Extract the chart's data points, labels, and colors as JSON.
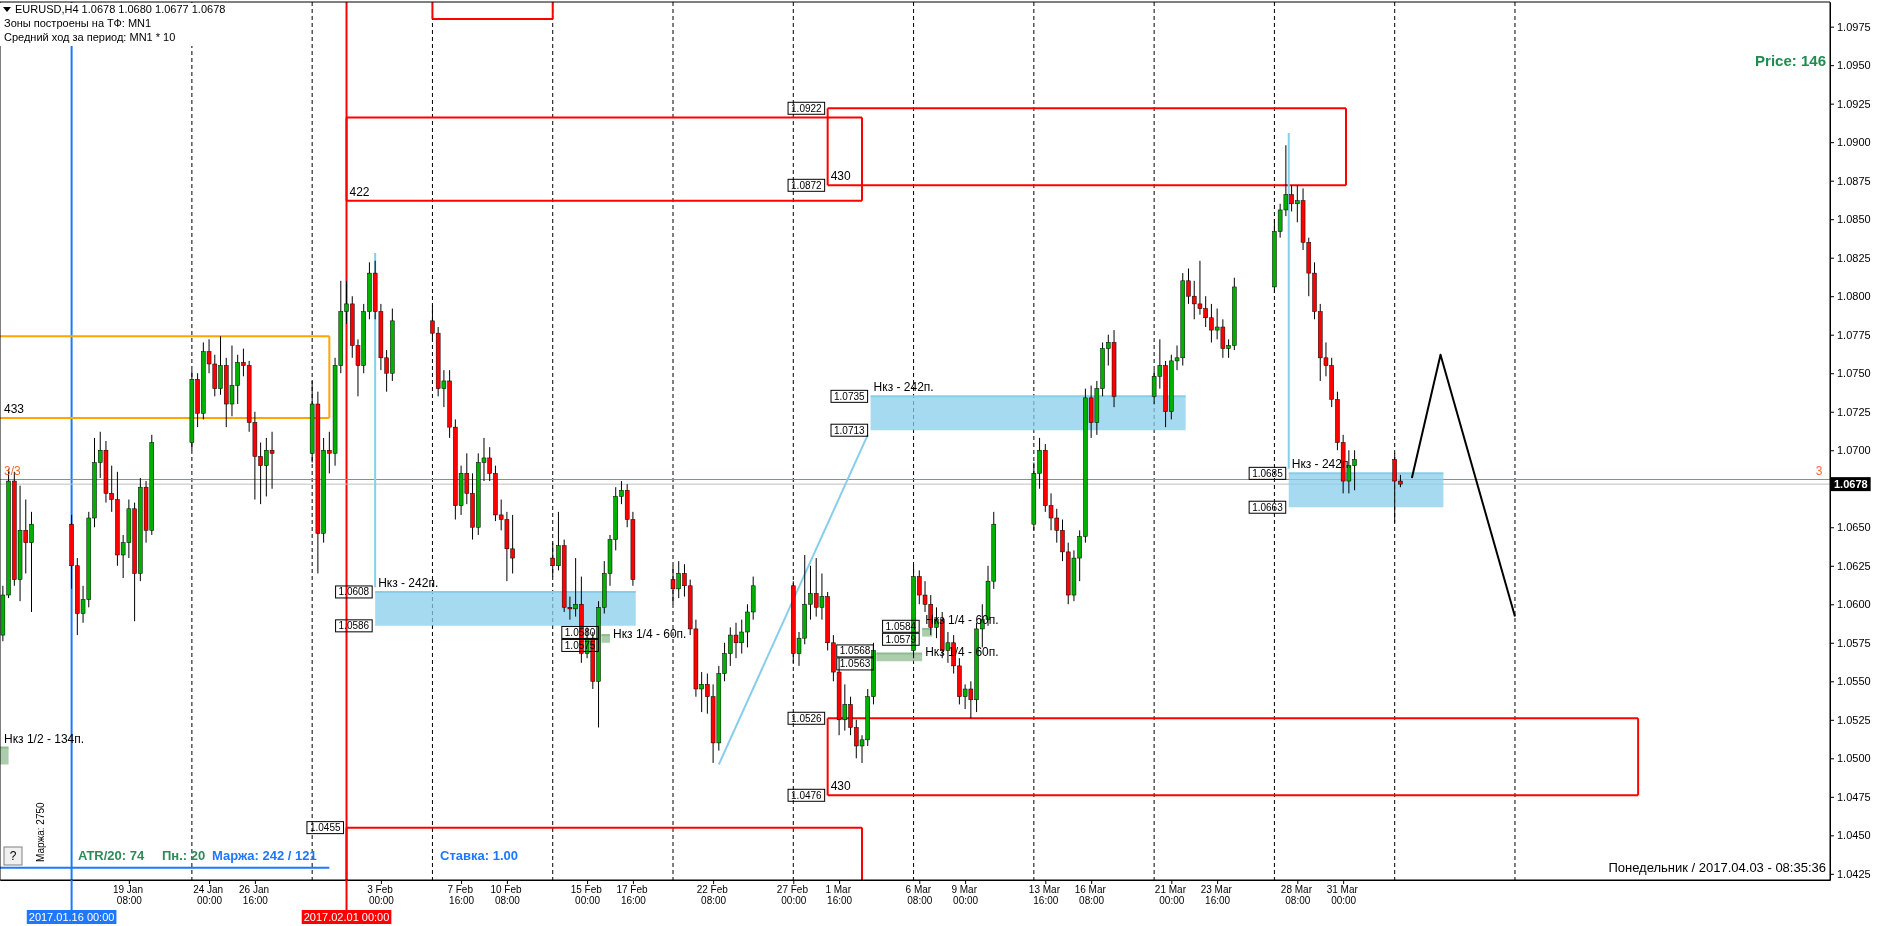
{
  "chart_data": {
    "type": "candlestick",
    "title": "EURUSD,H4  1.0678 1.0680 1.0677 1.0678",
    "subtitle": "Зоны построены на ТФ: MN1",
    "annotations": [
      "Средний ход за период: MN1 * 10",
      "Price: 146",
      "ATR/20: 74",
      "Пн.: 20",
      "Маржа: 242 / 121",
      "Ставка: 1.00",
      "Маржа: 2750",
      "Понедельник / 2017.04.03 - 08:35:36",
      "?",
      {
        "text": "3/3",
        "x": "2017-01-11T20:00",
        "y": 1.0681
      },
      {
        "text": "3",
        "x": "2017-04-27T08:00",
        "y": 1.0681
      },
      {
        "text": "422",
        "x": "2017-02-01T00:00",
        "y": 1.0862
      },
      {
        "text": "430",
        "x": "2017-03-01T00:00",
        "y": 1.0872
      },
      {
        "text": "430",
        "x": "2017-03-01T00:00",
        "y": 1.0476
      },
      {
        "text": "433",
        "x": "2017-01-11T20:00",
        "y": 1.0721
      },
      {
        "text": "Нкз - 242п.",
        "x": "2017-02-02T16:00",
        "y": 1.0608
      },
      {
        "text": "Нкз - 242п.",
        "x": "2017-03-03T12:00",
        "y": 1.0735
      },
      {
        "text": "Нкз - 242п.",
        "x": "2017-03-27T20:00",
        "y": 1.0685
      },
      {
        "text": "Нкз 1/2 - 134п.",
        "x": "2017-01-11T20:00",
        "y": 1.0507
      },
      {
        "text": "Нкз 1/4 - 60п.",
        "x": "2017-02-16T08:00",
        "y": 1.0575
      },
      {
        "text": "Нкз 1/4 - 60п.",
        "x": "2017-03-06T12:00",
        "y": 1.0584
      },
      {
        "text": "Нкз 1/4 - 60п.",
        "x": "2017-03-06T12:00",
        "y": 1.0563
      },
      {
        "text": "1.0922",
        "x": "2017-03-01T00:00",
        "y": 1.0922
      },
      {
        "text": "1.0872",
        "x": "2017-03-01T00:00",
        "y": 1.0872
      },
      {
        "text": "1.0526",
        "x": "2017-03-01T00:00",
        "y": 1.0526
      },
      {
        "text": "1.0476",
        "x": "2017-03-01T00:00",
        "y": 1.0476
      },
      {
        "text": "1.0455",
        "x": "2017-02-01T00:00",
        "y": 1.0455
      },
      {
        "text": "1.0608",
        "x": "2017-02-02T16:00",
        "y": 1.0608
      },
      {
        "text": "1.0586",
        "x": "2017-02-02T16:00",
        "y": 1.0586
      },
      {
        "text": "1.0735",
        "x": "2017-03-03T12:00",
        "y": 1.0735
      },
      {
        "text": "1.0713",
        "x": "2017-03-03T12:00",
        "y": 1.0713
      },
      {
        "text": "1.0685",
        "x": "2017-03-27T20:00",
        "y": 1.0685
      },
      {
        "text": "1.0663",
        "x": "2017-03-27T20:00",
        "y": 1.0663
      },
      {
        "text": "1.0580",
        "x": "2017-02-15T20:00",
        "y": 1.058
      },
      {
        "text": "1.0575",
        "x": "2017-02-15T20:00",
        "y": 1.0575
      },
      {
        "text": "1.0584",
        "x": "2017-03-06T12:00",
        "y": 1.0584
      },
      {
        "text": "1.0579",
        "x": "2017-03-06T12:00",
        "y": 1.0579
      },
      {
        "text": "1.0568",
        "x": "2017-03-03T20:00",
        "y": 1.0568
      },
      {
        "text": "1.0563",
        "x": "2017-03-03T20:00",
        "y": 1.0563
      }
    ],
    "xlim": [
      "2017-01-11T20:00",
      "2017-04-28T08:00"
    ],
    "xticks": [
      {
        "value": "2017-01-19T08:00",
        "label": "19 Jan 08:00"
      },
      {
        "value": "2017-01-24T00:00",
        "label": "24 Jan 00:00"
      },
      {
        "value": "2017-01-26T16:00",
        "label": "26 Jan 16:00"
      },
      {
        "value": "2017-02-03T00:00",
        "label": "3 Feb 00:00"
      },
      {
        "value": "2017-02-07T16:00",
        "label": "7 Feb 16:00"
      },
      {
        "value": "2017-02-10T08:00",
        "label": "10 Feb 08:00"
      },
      {
        "value": "2017-02-15T00:00",
        "label": "15 Feb 00:00"
      },
      {
        "value": "2017-02-17T16:00",
        "label": "17 Feb 16:00"
      },
      {
        "value": "2017-02-22T08:00",
        "label": "22 Feb 08:00"
      },
      {
        "value": "2017-02-27T00:00",
        "label": "27 Feb 00:00"
      },
      {
        "value": "2017-03-01T16:00",
        "label": "1 Mar 16:00"
      },
      {
        "value": "2017-03-06T08:00",
        "label": "6 Mar 08:00"
      },
      {
        "value": "2017-03-09T00:00",
        "label": "9 Mar 00:00"
      },
      {
        "value": "2017-03-13T16:00",
        "label": "13 Mar 16:00"
      },
      {
        "value": "2017-03-16T08:00",
        "label": "16 Mar 08:00"
      },
      {
        "value": "2017-03-21T00:00",
        "label": "21 Mar 00:00"
      },
      {
        "value": "2017-03-23T16:00",
        "label": "23 Mar 16:00"
      },
      {
        "value": "2017-03-28T08:00",
        "label": "28 Mar 08:00"
      },
      {
        "value": "2017-03-31T00:00",
        "label": "31 Mar 00:00"
      }
    ],
    "ylim": [
      1.0421,
      1.0991
    ],
    "yticks": [
      {
        "value": 1.0425,
        "label": "1.0425"
      },
      {
        "value": 1.045,
        "label": "1.0450"
      },
      {
        "value": 1.0475,
        "label": "1.0475"
      },
      {
        "value": 1.05,
        "label": "1.0500"
      },
      {
        "value": 1.0525,
        "label": "1.0525"
      },
      {
        "value": 1.055,
        "label": "1.0550"
      },
      {
        "value": 1.0575,
        "label": "1.0575"
      },
      {
        "value": 1.06,
        "label": "1.0600"
      },
      {
        "value": 1.0625,
        "label": "1.0625"
      },
      {
        "value": 1.065,
        "label": "1.0650"
      },
      {
        "value": 1.07,
        "label": "1.0700"
      },
      {
        "value": 1.0725,
        "label": "1.0725"
      },
      {
        "value": 1.075,
        "label": "1.0750"
      },
      {
        "value": 1.0775,
        "label": "1.0775"
      },
      {
        "value": 1.08,
        "label": "1.0800"
      },
      {
        "value": 1.0825,
        "label": "1.0825"
      },
      {
        "value": 1.085,
        "label": "1.0850"
      },
      {
        "value": 1.0875,
        "label": "1.0875"
      },
      {
        "value": 1.09,
        "label": "1.0900"
      },
      {
        "value": 1.0925,
        "label": "1.0925"
      },
      {
        "value": 1.095,
        "label": "1.0950"
      },
      {
        "value": 1.0975,
        "label": "1.0975"
      }
    ],
    "x": [
      "2017-01-12T00:00",
      "2017-01-12T08:00",
      "2017-01-12T16:00",
      "2017-01-13T00:00",
      "2017-01-13T08:00",
      "2017-01-13T16:00",
      "2017-01-16T00:00",
      "2017-01-16T08:00",
      "2017-01-16T16:00",
      "2017-01-17T00:00",
      "2017-01-17T08:00",
      "2017-01-17T16:00",
      "2017-01-18T00:00",
      "2017-01-18T08:00",
      "2017-01-18T16:00",
      "2017-01-19T00:00",
      "2017-01-19T08:00",
      "2017-01-19T16:00",
      "2017-01-20T00:00",
      "2017-01-20T08:00",
      "2017-01-20T16:00",
      "2017-01-23T00:00",
      "2017-01-23T08:00",
      "2017-01-23T16:00",
      "2017-01-24T00:00",
      "2017-01-24T08:00",
      "2017-01-24T16:00",
      "2017-01-25T00:00",
      "2017-01-25T08:00",
      "2017-01-25T16:00",
      "2017-01-26T00:00",
      "2017-01-26T08:00",
      "2017-01-26T16:00",
      "2017-01-27T00:00",
      "2017-01-27T08:00",
      "2017-01-27T16:00",
      "2017-01-30T00:00",
      "2017-01-30T08:00",
      "2017-01-30T16:00",
      "2017-01-31T00:00",
      "2017-01-31T08:00",
      "2017-01-31T16:00",
      "2017-02-01T00:00",
      "2017-02-01T08:00",
      "2017-02-01T16:00",
      "2017-02-02T00:00",
      "2017-02-02T08:00",
      "2017-02-02T16:00",
      "2017-02-03T00:00",
      "2017-02-03T08:00",
      "2017-02-03T16:00",
      "2017-02-06T00:00",
      "2017-02-06T08:00",
      "2017-02-06T16:00",
      "2017-02-07T00:00",
      "2017-02-07T08:00",
      "2017-02-07T16:00",
      "2017-02-08T00:00",
      "2017-02-08T08:00",
      "2017-02-08T16:00",
      "2017-02-09T00:00",
      "2017-02-09T08:00",
      "2017-02-09T16:00",
      "2017-02-10T00:00",
      "2017-02-10T08:00",
      "2017-02-10T16:00",
      "2017-02-13T00:00",
      "2017-02-13T08:00",
      "2017-02-13T16:00",
      "2017-02-14T00:00",
      "2017-02-14T08:00",
      "2017-02-14T16:00",
      "2017-02-15T00:00",
      "2017-02-15T08:00",
      "2017-02-15T16:00",
      "2017-02-16T00:00",
      "2017-02-16T08:00",
      "2017-02-16T16:00",
      "2017-02-17T00:00",
      "2017-02-17T08:00",
      "2017-02-17T16:00",
      "2017-02-20T00:00",
      "2017-02-20T08:00",
      "2017-02-20T16:00",
      "2017-02-21T00:00",
      "2017-02-21T08:00",
      "2017-02-21T16:00",
      "2017-02-22T00:00",
      "2017-02-22T08:00",
      "2017-02-22T16:00",
      "2017-02-23T00:00",
      "2017-02-23T08:00",
      "2017-02-23T16:00",
      "2017-02-24T00:00",
      "2017-02-24T08:00",
      "2017-02-24T16:00",
      "2017-02-27T00:00",
      "2017-02-27T08:00",
      "2017-02-27T16:00",
      "2017-02-28T00:00",
      "2017-02-28T08:00",
      "2017-02-28T16:00",
      "2017-03-01T00:00",
      "2017-03-01T08:00",
      "2017-03-01T16:00",
      "2017-03-02T00:00",
      "2017-03-02T08:00",
      "2017-03-02T16:00",
      "2017-03-03T00:00",
      "2017-03-03T08:00",
      "2017-03-03T16:00",
      "2017-03-06T00:00",
      "2017-03-06T08:00",
      "2017-03-06T16:00",
      "2017-03-07T00:00",
      "2017-03-07T08:00",
      "2017-03-07T16:00",
      "2017-03-08T00:00",
      "2017-03-08T08:00",
      "2017-03-08T16:00",
      "2017-03-09T00:00",
      "2017-03-09T08:00",
      "2017-03-09T16:00",
      "2017-03-10T00:00",
      "2017-03-10T08:00",
      "2017-03-10T16:00",
      "2017-03-13T00:00",
      "2017-03-13T08:00",
      "2017-03-13T16:00",
      "2017-03-14T00:00",
      "2017-03-14T08:00",
      "2017-03-14T16:00",
      "2017-03-15T00:00",
      "2017-03-15T08:00",
      "2017-03-15T16:00",
      "2017-03-16T00:00",
      "2017-03-16T08:00",
      "2017-03-16T16:00",
      "2017-03-17T00:00",
      "2017-03-17T08:00",
      "2017-03-17T16:00",
      "2017-03-20T00:00",
      "2017-03-20T08:00",
      "2017-03-20T16:00",
      "2017-03-21T00:00",
      "2017-03-21T08:00",
      "2017-03-21T16:00",
      "2017-03-22T00:00",
      "2017-03-22T08:00",
      "2017-03-22T16:00",
      "2017-03-23T00:00",
      "2017-03-23T08:00",
      "2017-03-23T16:00",
      "2017-03-24T00:00",
      "2017-03-24T08:00",
      "2017-03-24T16:00",
      "2017-03-27T00:00",
      "2017-03-27T08:00",
      "2017-03-27T16:00",
      "2017-03-28T00:00",
      "2017-03-28T08:00",
      "2017-03-28T16:00",
      "2017-03-29T00:00",
      "2017-03-29T08:00",
      "2017-03-29T16:00",
      "2017-03-30T00:00",
      "2017-03-30T08:00",
      "2017-03-30T16:00",
      "2017-03-31T00:00",
      "2017-03-31T08:00",
      "2017-03-31T16:00",
      "2017-04-03T00:00",
      "2017-04-03T08:00"
    ],
    "ohlc": [
      [
        1.058,
        1.0612,
        1.0576,
        1.0606
      ],
      [
        1.0606,
        1.0688,
        1.0604,
        1.068
      ],
      [
        1.068,
        1.0686,
        1.0612,
        1.0616
      ],
      [
        1.0616,
        1.0677,
        1.0602,
        1.0648
      ],
      [
        1.0648,
        1.0668,
        1.062,
        1.064
      ],
      [
        1.064,
        1.066,
        1.0595,
        1.0652
      ],
      [
        1.0652,
        1.0658,
        1.061,
        1.0625
      ],
      [
        1.0625,
        1.063,
        1.058,
        1.0594
      ],
      [
        1.0594,
        1.0612,
        1.0588,
        1.0603
      ],
      [
        1.0603,
        1.066,
        1.0598,
        1.0656
      ],
      [
        1.0656,
        1.0708,
        1.065,
        1.0692
      ],
      [
        1.0692,
        1.0712,
        1.0682,
        1.07
      ],
      [
        1.07,
        1.0706,
        1.0666,
        1.0672
      ],
      [
        1.0672,
        1.069,
        1.066,
        1.0668
      ],
      [
        1.0668,
        1.0686,
        1.0625,
        1.0632
      ],
      [
        1.0632,
        1.0645,
        1.0617,
        1.064
      ],
      [
        1.064,
        1.0668,
        1.063,
        1.0662
      ],
      [
        1.0662,
        1.0666,
        1.0589,
        1.062
      ],
      [
        1.062,
        1.0682,
        1.0615,
        1.0676
      ],
      [
        1.0676,
        1.068,
        1.064,
        1.0648
      ],
      [
        1.0648,
        1.071,
        1.0645,
        1.0705
      ],
      [
        1.0705,
        1.0752,
        1.07,
        1.0746
      ],
      [
        1.0746,
        1.075,
        1.0715,
        1.0724
      ],
      [
        1.0724,
        1.077,
        1.072,
        1.0764
      ],
      [
        1.0764,
        1.0772,
        1.075,
        1.0756
      ],
      [
        1.0756,
        1.0762,
        1.0735,
        1.074
      ],
      [
        1.074,
        1.0774,
        1.0736,
        1.0755
      ],
      [
        1.0755,
        1.076,
        1.0715,
        1.073
      ],
      [
        1.073,
        1.0768,
        1.0722,
        1.0742
      ],
      [
        1.0742,
        1.0762,
        1.073,
        1.0757
      ],
      [
        1.0757,
        1.0766,
        1.0748,
        1.0755
      ],
      [
        1.0755,
        1.0758,
        1.0712,
        1.0718
      ],
      [
        1.0718,
        1.0725,
        1.0668,
        1.0696
      ],
      [
        1.0696,
        1.0705,
        1.0665,
        1.069
      ],
      [
        1.069,
        1.0708,
        1.067,
        1.07
      ],
      [
        1.07,
        1.0712,
        1.0675,
        1.0698
      ],
      [
        1.0698,
        1.0745,
        1.0692,
        1.073
      ],
      [
        1.073,
        1.0738,
        1.062,
        1.0646
      ],
      [
        1.0646,
        1.0708,
        1.064,
        1.07
      ],
      [
        1.07,
        1.0712,
        1.0685,
        1.0698
      ],
      [
        1.0698,
        1.076,
        1.069,
        1.0755
      ],
      [
        1.0755,
        1.081,
        1.075,
        1.079
      ],
      [
        1.079,
        1.081,
        1.0782,
        1.0795
      ],
      [
        1.0795,
        1.08,
        1.076,
        1.0768
      ],
      [
        1.0768,
        1.0772,
        1.0735,
        1.0755
      ],
      [
        1.0755,
        1.0795,
        1.075,
        1.079
      ],
      [
        1.079,
        1.0822,
        1.0785,
        1.0815
      ],
      [
        1.0815,
        1.0823,
        1.0785,
        1.079
      ],
      [
        1.079,
        1.0795,
        1.0752,
        1.076
      ],
      [
        1.076,
        1.0765,
        1.0738,
        1.075
      ],
      [
        1.075,
        1.0792,
        1.0745,
        1.0784
      ],
      [
        1.0784,
        1.0794,
        1.0772,
        1.0776
      ],
      [
        1.0776,
        1.078,
        1.0735,
        1.074
      ],
      [
        1.074,
        1.0752,
        1.0728,
        1.0745
      ],
      [
        1.0745,
        1.0752,
        1.0708,
        1.0715
      ],
      [
        1.0715,
        1.072,
        1.0655,
        1.0664
      ],
      [
        1.0664,
        1.069,
        1.0658,
        1.0685
      ],
      [
        1.0685,
        1.0698,
        1.0665,
        1.0672
      ],
      [
        1.0672,
        1.0685,
        1.0642,
        1.065
      ],
      [
        1.065,
        1.0698,
        1.0645,
        1.0692
      ],
      [
        1.0692,
        1.0708,
        1.068,
        1.0695
      ],
      [
        1.0695,
        1.0702,
        1.068,
        1.0685
      ],
      [
        1.0685,
        1.069,
        1.0654,
        1.0658
      ],
      [
        1.0658,
        1.0668,
        1.0648,
        1.0655
      ],
      [
        1.0655,
        1.066,
        1.0615,
        1.0636
      ],
      [
        1.0636,
        1.0658,
        1.062,
        1.063
      ],
      [
        1.063,
        1.064,
        1.0618,
        1.0625
      ],
      [
        1.0625,
        1.066,
        1.0622,
        1.0638
      ],
      [
        1.0638,
        1.0642,
        1.0595,
        1.0598
      ],
      [
        1.0598,
        1.0605,
        1.059,
        1.0597
      ],
      [
        1.0597,
        1.063,
        1.0592,
        1.06
      ],
      [
        1.06,
        1.0618,
        1.0562,
        1.0568
      ],
      [
        1.0568,
        1.0585,
        1.0565,
        1.0578
      ],
      [
        1.0578,
        1.0582,
        1.0545,
        1.055
      ],
      [
        1.055,
        1.0602,
        1.052,
        1.0598
      ],
      [
        1.0598,
        1.0628,
        1.0594,
        1.062
      ],
      [
        1.062,
        1.0645,
        1.0612,
        1.0642
      ],
      [
        1.0642,
        1.0676,
        1.0635,
        1.067
      ],
      [
        1.067,
        1.068,
        1.0665,
        1.0674
      ],
      [
        1.0674,
        1.0678,
        1.065,
        1.0655
      ],
      [
        1.0655,
        1.066,
        1.0612,
        1.0616
      ],
      [
        1.0616,
        1.0625,
        1.06,
        1.061
      ],
      [
        1.061,
        1.0628,
        1.0604,
        1.062
      ],
      [
        1.062,
        1.0626,
        1.0605,
        1.0612
      ],
      [
        1.0612,
        1.0616,
        1.058,
        1.0584
      ],
      [
        1.0584,
        1.059,
        1.054,
        1.0545
      ],
      [
        1.0545,
        1.0556,
        1.053,
        1.0548
      ],
      [
        1.0548,
        1.0555,
        1.0529,
        1.054
      ],
      [
        1.054,
        1.0548,
        1.0497,
        1.051
      ],
      [
        1.051,
        1.056,
        1.0505,
        1.0555
      ],
      [
        1.0555,
        1.0575,
        1.055,
        1.0568
      ],
      [
        1.0568,
        1.0585,
        1.056,
        1.058
      ],
      [
        1.058,
        1.0588,
        1.0565,
        1.0575
      ],
      [
        1.0575,
        1.059,
        1.0568,
        1.0582
      ],
      [
        1.0582,
        1.06,
        1.0572,
        1.0595
      ],
      [
        1.0595,
        1.0618,
        1.059,
        1.0612
      ],
      [
        1.0612,
        1.0615,
        1.0562,
        1.0568
      ],
      [
        1.0568,
        1.0582,
        1.056,
        1.0578
      ],
      [
        1.0578,
        1.0632,
        1.0574,
        1.06
      ],
      [
        1.06,
        1.0625,
        1.059,
        1.0607
      ],
      [
        1.0607,
        1.063,
        1.0592,
        1.0598
      ],
      [
        1.0598,
        1.062,
        1.059,
        1.0605
      ],
      [
        1.0605,
        1.0608,
        1.057,
        1.0575
      ],
      [
        1.0575,
        1.058,
        1.055,
        1.0556
      ],
      [
        1.0556,
        1.0565,
        1.0515,
        1.0525
      ],
      [
        1.0525,
        1.0548,
        1.0518,
        1.0535
      ],
      [
        1.0535,
        1.054,
        1.0515,
        1.052
      ],
      [
        1.052,
        1.0525,
        1.05,
        1.0508
      ],
      [
        1.0508,
        1.0515,
        1.0497,
        1.0512
      ],
      [
        1.0512,
        1.0545,
        1.0508,
        1.054
      ],
      [
        1.054,
        1.0575,
        1.0535,
        1.057
      ],
      [
        1.057,
        1.0625,
        1.0565,
        1.0618
      ],
      [
        1.0618,
        1.0622,
        1.06,
        1.0606
      ],
      [
        1.0606,
        1.0615,
        1.0595,
        1.06
      ],
      [
        1.06,
        1.0606,
        1.058,
        1.0585
      ],
      [
        1.0585,
        1.0598,
        1.0578,
        1.059
      ],
      [
        1.059,
        1.0595,
        1.0565,
        1.057
      ],
      [
        1.057,
        1.0582,
        1.0562,
        1.0575
      ],
      [
        1.0575,
        1.058,
        1.0555,
        1.056
      ],
      [
        1.056,
        1.0565,
        1.0535,
        1.054
      ],
      [
        1.054,
        1.0548,
        1.0532,
        1.0545
      ],
      [
        1.0545,
        1.055,
        1.0526,
        1.0538
      ],
      [
        1.0538,
        1.0588,
        1.053,
        1.0584
      ],
      [
        1.0584,
        1.06,
        1.0572,
        1.059
      ],
      [
        1.059,
        1.0625,
        1.0586,
        1.0615
      ],
      [
        1.0615,
        1.066,
        1.061,
        1.0652
      ],
      [
        1.0652,
        1.0692,
        1.0648,
        1.0685
      ],
      [
        1.0685,
        1.0708,
        1.0675,
        1.07
      ],
      [
        1.07,
        1.0704,
        1.066,
        1.0664
      ],
      [
        1.0664,
        1.0672,
        1.0648,
        1.0656
      ],
      [
        1.0656,
        1.0662,
        1.064,
        1.0648
      ],
      [
        1.0648,
        1.0655,
        1.0628,
        1.0634
      ],
      [
        1.0634,
        1.064,
        1.06,
        1.0606
      ],
      [
        1.0606,
        1.0635,
        1.0602,
        1.063
      ],
      [
        1.063,
        1.0648,
        1.0615,
        1.0644
      ],
      [
        1.0644,
        1.074,
        1.064,
        1.0734
      ],
      [
        1.0734,
        1.0742,
        1.0708,
        1.0718
      ],
      [
        1.0718,
        1.0745,
        1.071,
        1.074
      ],
      [
        1.074,
        1.077,
        1.0735,
        1.0766
      ],
      [
        1.0766,
        1.0775,
        1.0755,
        1.077
      ],
      [
        1.077,
        1.0778,
        1.0728,
        1.0735
      ],
      [
        1.0735,
        1.0752,
        1.073,
        1.0748
      ],
      [
        1.0748,
        1.0772,
        1.074,
        1.0755
      ],
      [
        1.0755,
        1.0758,
        1.0715,
        1.0725
      ],
      [
        1.0725,
        1.0762,
        1.072,
        1.0758
      ],
      [
        1.0758,
        1.0768,
        1.0752,
        1.076
      ],
      [
        1.076,
        1.0815,
        1.0755,
        1.081
      ],
      [
        1.081,
        1.0818,
        1.0795,
        1.08
      ],
      [
        1.08,
        1.081,
        1.0785,
        1.0795
      ],
      [
        1.0795,
        1.0823,
        1.0788,
        1.0792
      ],
      [
        1.0792,
        1.08,
        1.078,
        1.0786
      ],
      [
        1.0786,
        1.0795,
        1.077,
        1.0778
      ],
      [
        1.0778,
        1.0792,
        1.0772,
        1.078
      ],
      [
        1.078,
        1.0785,
        1.076,
        1.0766
      ],
      [
        1.0766,
        1.0772,
        1.076,
        1.0768
      ],
      [
        1.0768,
        1.0812,
        1.0765,
        1.0806
      ],
      [
        1.0806,
        1.085,
        1.0802,
        1.0842
      ],
      [
        1.0842,
        1.086,
        1.0838,
        1.0856
      ],
      [
        1.0856,
        1.0898,
        1.0852,
        1.0866
      ],
      [
        1.0866,
        1.0872,
        1.0855,
        1.086
      ],
      [
        1.086,
        1.0872,
        1.0848,
        1.0862
      ],
      [
        1.0862,
        1.087,
        1.083,
        1.0835
      ],
      [
        1.0835,
        1.0838,
        1.08,
        1.0815
      ],
      [
        1.0815,
        1.0822,
        1.0785,
        1.079
      ],
      [
        1.079,
        1.0795,
        1.0745,
        1.076
      ],
      [
        1.076,
        1.077,
        1.0748,
        1.0755
      ],
      [
        1.0755,
        1.076,
        1.0728,
        1.0733
      ],
      [
        1.0733,
        1.0738,
        1.07,
        1.0705
      ],
      [
        1.0705,
        1.071,
        1.0672,
        1.068
      ],
      [
        1.068,
        1.07,
        1.0672,
        1.069
      ],
      [
        1.069,
        1.07,
        1.0674,
        1.0694
      ],
      [
        1.0694,
        1.0698,
        1.0653,
        1.068
      ],
      [
        1.068,
        1.0684,
        1.0676,
        1.0678
      ]
    ],
    "series": [
      {
        "type": "line",
        "color": "#ff0000",
        "x": [
          "2017-02-06T00:00",
          "2017-02-13T00:00"
        ],
        "values": [
          1.098,
          1.098
        ]
      },
      {
        "type": "line",
        "color": "#ff0000",
        "x": [
          "2017-02-06T00:00",
          "2017-02-06T00:00"
        ],
        "values": [
          1.098,
          1.0991
        ]
      },
      {
        "type": "line",
        "color": "#ff0000",
        "x": [
          "2017-02-13T00:00",
          "2017-02-13T00:00"
        ],
        "values": [
          1.098,
          1.0991
        ]
      },
      {
        "type": "line",
        "color": "#ff0000",
        "x": [
          "2017-02-01T00:00",
          "2017-03-03T00:00"
        ],
        "values": [
          1.0916,
          1.0916
        ]
      },
      {
        "type": "line",
        "color": "#ff0000",
        "x": [
          "2017-02-01T00:00",
          "2017-03-03T00:00"
        ],
        "values": [
          1.0862,
          1.0862
        ]
      },
      {
        "type": "line",
        "color": "#ff0000",
        "x": [
          "2017-02-01T00:00",
          "2017-02-01T00:00"
        ],
        "values": [
          1.0862,
          1.0916
        ]
      },
      {
        "type": "line",
        "color": "#ff0000",
        "x": [
          "2017-03-03T00:00",
          "2017-03-03T00:00"
        ],
        "values": [
          1.0862,
          1.0916
        ]
      },
      {
        "type": "line",
        "color": "#ff0000",
        "x": [
          "2017-03-01T00:00",
          "2017-03-31T04:00"
        ],
        "values": [
          1.0922,
          1.0922
        ]
      },
      {
        "type": "line",
        "color": "#ff0000",
        "x": [
          "2017-03-01T00:00",
          "2017-03-31T04:00"
        ],
        "values": [
          1.0872,
          1.0872
        ]
      },
      {
        "type": "line",
        "color": "#ff0000",
        "x": [
          "2017-03-01T00:00",
          "2017-03-01T00:00"
        ],
        "values": [
          1.0872,
          1.0922
        ]
      },
      {
        "type": "line",
        "color": "#ff0000",
        "x": [
          "2017-03-31T04:00",
          "2017-03-31T04:00"
        ],
        "values": [
          1.0872,
          1.0922
        ]
      },
      {
        "type": "line",
        "color": "#ff0000",
        "x": [
          "2017-03-01T00:00",
          "2017-04-17T04:00"
        ],
        "values": [
          1.0526,
          1.0526
        ]
      },
      {
        "type": "line",
        "color": "#ff0000",
        "x": [
          "2017-03-01T00:00",
          "2017-04-17T04:00"
        ],
        "values": [
          1.0476,
          1.0476
        ]
      },
      {
        "type": "line",
        "color": "#ff0000",
        "x": [
          "2017-03-01T00:00",
          "2017-03-01T00:00"
        ],
        "values": [
          1.0476,
          1.0526
        ]
      },
      {
        "type": "line",
        "color": "#ff0000",
        "x": [
          "2017-04-17T04:00",
          "2017-04-17T04:00"
        ],
        "values": [
          1.0476,
          1.0526
        ]
      },
      {
        "type": "line",
        "color": "#ff0000",
        "x": [
          "2017-02-01T00:00",
          "2017-03-03T00:00"
        ],
        "values": [
          1.0455,
          1.0455
        ]
      },
      {
        "type": "line",
        "color": "#ff0000",
        "x": [
          "2017-02-01T00:00",
          "2017-02-01T00:00"
        ],
        "values": [
          1.0421,
          1.0455
        ]
      },
      {
        "type": "line",
        "color": "#ff0000",
        "x": [
          "2017-03-03T00:00",
          "2017-03-03T00:00"
        ],
        "values": [
          1.0421,
          1.0455
        ]
      },
      {
        "type": "line",
        "color": "#ffa500",
        "x": [
          "2017-01-11T20:00",
          "2017-01-31T00:00"
        ],
        "values": [
          1.0774,
          1.0774
        ]
      },
      {
        "type": "line",
        "color": "#ffa500",
        "x": [
          "2017-01-11T20:00",
          "2017-01-31T00:00"
        ],
        "values": [
          1.0721,
          1.0721
        ]
      },
      {
        "type": "line",
        "color": "#ffa500",
        "x": [
          "2017-01-31T00:00",
          "2017-01-31T00:00"
        ],
        "values": [
          1.0721,
          1.0774
        ]
      },
      {
        "type": "line",
        "color": "#87ceeb",
        "x": [
          "2017-02-02T16:00",
          "2017-02-17T20:00"
        ],
        "values": [
          1.0608,
          1.0608
        ],
        "lower": [
          1.0586,
          1.0586
        ],
        "upper": [
          1.0608,
          1.0608
        ]
      },
      {
        "type": "line",
        "color": "#87ceeb",
        "x": [
          "2017-03-03T12:00",
          "2017-03-21T20:00"
        ],
        "values": [
          1.0735,
          1.0735
        ],
        "lower": [
          1.0713,
          1.0713
        ],
        "upper": [
          1.0735,
          1.0735
        ]
      },
      {
        "type": "line",
        "color": "#87ceeb",
        "x": [
          "2017-03-27T20:00",
          "2017-04-05T20:00"
        ],
        "values": [
          1.0685,
          1.0685
        ],
        "lower": [
          1.0663,
          1.0663
        ],
        "upper": [
          1.0685,
          1.0685
        ]
      },
      {
        "type": "line",
        "color": "#8fbc8f",
        "x": [
          "2017-01-11T20:00",
          "2017-01-12T08:00"
        ],
        "values": [
          1.0507,
          1.0507
        ],
        "lower": [
          1.0496,
          1.0496
        ],
        "upper": [
          1.0507,
          1.0507
        ]
      },
      {
        "type": "line",
        "color": "#8fbc8f",
        "x": [
          "2017-02-15T20:00",
          "2017-02-16T08:00"
        ],
        "values": [
          1.058,
          1.058
        ],
        "lower": [
          1.0575,
          1.0575
        ],
        "upper": [
          1.058,
          1.058
        ]
      },
      {
        "type": "line",
        "color": "#8fbc8f",
        "x": [
          "2017-03-06T12:00",
          "2017-03-07T02:00"
        ],
        "values": [
          1.0584,
          1.0584
        ],
        "lower": [
          1.0579,
          1.0579
        ],
        "upper": [
          1.0584,
          1.0584
        ]
      },
      {
        "type": "line",
        "color": "#8fbc8f",
        "x": [
          "2017-03-03T20:00",
          "2017-03-06T12:00"
        ],
        "values": [
          1.0568,
          1.0568
        ],
        "lower": [
          1.0563,
          1.0563
        ],
        "upper": [
          1.0568,
          1.0568
        ]
      },
      {
        "type": "line",
        "color": "#000000",
        "x": [
          "2017-04-04T00:00",
          "2017-04-05T16:00",
          "2017-04-10T00:00"
        ],
        "values": [
          1.0682,
          1.0762,
          1.0592
        ]
      },
      {
        "type": "line",
        "color": "#87ceeb",
        "x": [
          "2017-02-02T16:00",
          "2017-02-02T16:00"
        ],
        "values": [
          1.0611,
          1.0828
        ]
      },
      {
        "type": "line",
        "color": "#87ceeb",
        "x": [
          "2017-03-27T20:00",
          "2017-03-27T20:00"
        ],
        "values": [
          1.0688,
          1.0906
        ]
      },
      {
        "type": "line",
        "color": "#87ceeb",
        "x": [
          "2017-02-22T16:00",
          "2017-03-03T08:00"
        ],
        "values": [
          1.0496,
          1.071
        ]
      },
      {
        "type": "line",
        "color": "#1e78ff",
        "x": [
          "2017-01-11T20:00",
          "2017-01-31T00:00"
        ],
        "values": [
          1.0429,
          1.0429
        ]
      }
    ],
    "ref_lines": [
      {
        "axis": "x",
        "value": "2017-01-16T00:00",
        "label": "2017.01.16 00:00",
        "color": "#1e78ff"
      },
      {
        "axis": "x",
        "value": "2017-02-01T00:00",
        "label": "2017.02.01 00:00",
        "color": "#ff0000"
      },
      {
        "axis": "x",
        "value": "2017-01-23T00:00",
        "color": "#000000",
        "line_style": "dashed"
      },
      {
        "axis": "x",
        "value": "2017-01-30T00:00",
        "color": "#000000",
        "line_style": "dashed"
      },
      {
        "axis": "x",
        "value": "2017-02-06T00:00",
        "color": "#000000",
        "line_style": "dashed"
      },
      {
        "axis": "x",
        "value": "2017-02-13T00:00",
        "color": "#000000",
        "line_style": "dashed"
      },
      {
        "axis": "x",
        "value": "2017-02-20T00:00",
        "color": "#000000",
        "line_style": "dashed"
      },
      {
        "axis": "x",
        "value": "2017-02-27T00:00",
        "color": "#000000",
        "line_style": "dashed"
      },
      {
        "axis": "x",
        "value": "2017-03-06T00:00",
        "color": "#000000",
        "line_style": "dashed"
      },
      {
        "axis": "x",
        "value": "2017-03-13T00:00",
        "color": "#000000",
        "line_style": "dashed"
      },
      {
        "axis": "x",
        "value": "2017-03-20T00:00",
        "color": "#000000",
        "line_style": "dashed"
      },
      {
        "axis": "x",
        "value": "2017-03-27T00:00",
        "color": "#000000",
        "line_style": "dashed"
      },
      {
        "axis": "x",
        "value": "2017-04-03T00:00",
        "color": "#000000",
        "line_style": "dashed"
      },
      {
        "axis": "x",
        "value": "2017-04-10T00:00",
        "color": "#000000",
        "line_style": "dashed"
      },
      {
        "axis": "y",
        "value": 1.0681,
        "color": "#ff6633"
      },
      {
        "axis": "y",
        "value": 1.0678,
        "label": "1.0678",
        "color": "#c0c0c0"
      }
    ]
  }
}
